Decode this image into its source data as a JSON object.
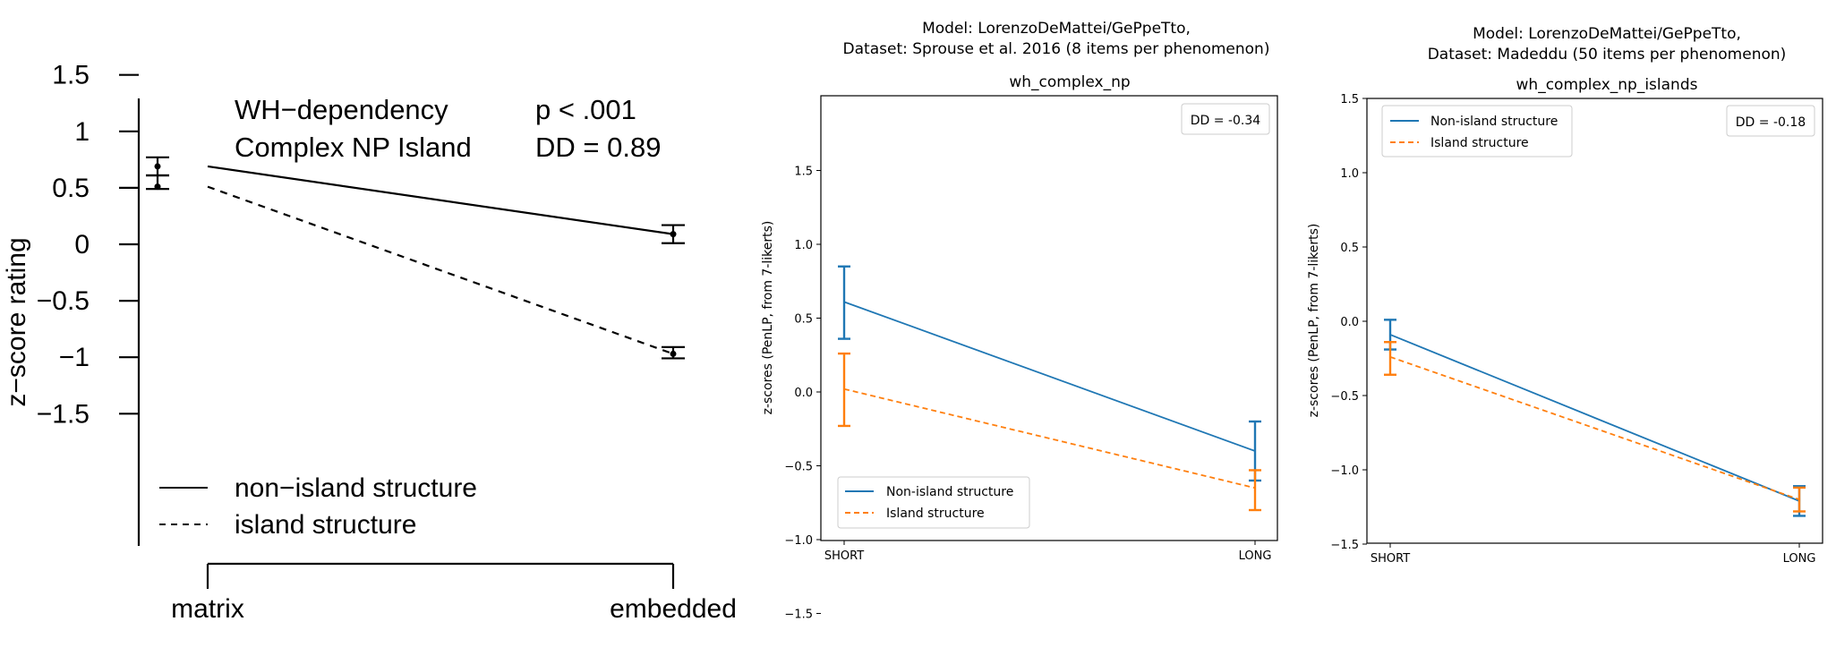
{
  "chart_data": [
    {
      "type": "line",
      "title_lines": [
        "WH−dependency",
        "Complex NP Island"
      ],
      "stats": [
        "p < .001",
        "DD = 0.89"
      ],
      "ylabel": "z−score rating",
      "xlabel": "",
      "categories": [
        "matrix",
        "embedded"
      ],
      "ylim": [
        -1.5,
        1.5
      ],
      "yticks": [
        1.5,
        1,
        0.5,
        0,
        -0.5,
        -1,
        -1.5
      ],
      "ytick_labels": [
        "1.5",
        "1",
        "0.5",
        "0",
        "−0.5",
        "−1",
        "−1.5"
      ],
      "legend_position": "bottom-left",
      "series": [
        {
          "name": "non−island structure",
          "style": "solid",
          "color": "#000000",
          "values": [
            0.69,
            0.09
          ],
          "err_low": [
            0.61,
            0.01
          ],
          "err_high": [
            0.77,
            0.17
          ]
        },
        {
          "name": "island structure",
          "style": "dashed",
          "color": "#000000",
          "values": [
            0.51,
            -0.97
          ],
          "err_low": [
            0.49,
            -1.01
          ],
          "err_high": [
            0.61,
            -0.91
          ]
        }
      ]
    },
    {
      "type": "line",
      "suptitle_lines": [
        "Model: LorenzoDeMattei/GePpeTto,",
        "Dataset: Sprouse et al. 2016 (8 items per phenomenon)"
      ],
      "title": "wh_complex_np",
      "ylabel": "z-scores (PenLP, from 7-likerts)",
      "categories": [
        "SHORT",
        "LONG"
      ],
      "ylim": [
        -1.5,
        1.5
      ],
      "yticks": [
        1.5,
        1.0,
        0.5,
        0.0,
        -0.5,
        -1.0,
        -1.5
      ],
      "ytick_labels": [
        "1.5",
        "1.0",
        "0.5",
        "0.0",
        "−0.5",
        "−1.0",
        "−1.5"
      ],
      "annotation": "DD = -0.34",
      "legend_position": "lower-left",
      "series": [
        {
          "name": "Non-island structure",
          "style": "solid",
          "color": "#1f77b4",
          "values": [
            0.61,
            -0.4
          ],
          "err_low": [
            0.36,
            -0.6
          ],
          "err_high": [
            0.85,
            -0.2
          ]
        },
        {
          "name": "Island structure",
          "style": "dashed",
          "color": "#ff7f0e",
          "values": [
            0.02,
            -0.65
          ],
          "err_low": [
            -0.23,
            -0.8
          ],
          "err_high": [
            0.26,
            -0.53
          ]
        }
      ]
    },
    {
      "type": "line",
      "suptitle_lines": [
        "Model: LorenzoDeMattei/GePpeTto,",
        "Dataset: Madeddu (50 items per phenomenon)"
      ],
      "title": "wh_complex_np_islands",
      "ylabel": "z-scores (PenLP, from 7-likerts)",
      "categories": [
        "SHORT",
        "LONG"
      ],
      "ylim": [
        -1.5,
        1.5
      ],
      "yticks": [
        1.5,
        1.0,
        0.5,
        0.0,
        -0.5,
        -1.0,
        -1.5
      ],
      "ytick_labels": [
        "1.5",
        "1.0",
        "0.5",
        "0.0",
        "−0.5",
        "−1.0",
        "−1.5"
      ],
      "annotation": "DD = -0.18",
      "legend_position": "upper-left",
      "series": [
        {
          "name": "Non-island structure",
          "style": "solid",
          "color": "#1f77b4",
          "values": [
            -0.09,
            -1.21
          ],
          "err_low": [
            -0.19,
            -1.31
          ],
          "err_high": [
            0.01,
            -1.11
          ]
        },
        {
          "name": "Island structure",
          "style": "dashed",
          "color": "#ff7f0e",
          "values": [
            -0.24,
            -1.2
          ],
          "err_low": [
            -0.36,
            -1.28
          ],
          "err_high": [
            -0.14,
            -1.12
          ]
        }
      ]
    }
  ]
}
